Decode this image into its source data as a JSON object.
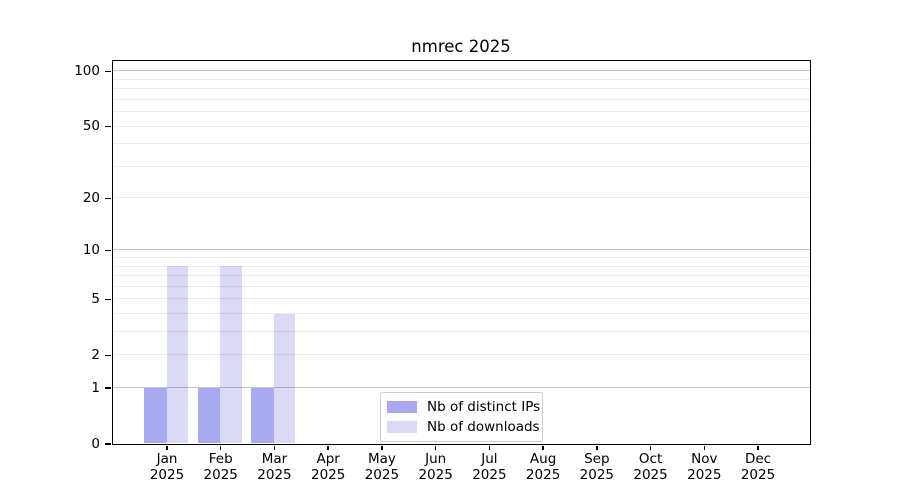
{
  "title": "nmrec 2025",
  "chart_data": {
    "type": "bar",
    "title": "nmrec 2025",
    "categories": [
      "Jan",
      "Feb",
      "Mar",
      "Apr",
      "May",
      "Jun",
      "Jul",
      "Aug",
      "Sep",
      "Oct",
      "Nov",
      "Dec"
    ],
    "category_year": "2025",
    "series": [
      {
        "name": "Nb of distinct IPs",
        "color": "#a9a9f1",
        "values": [
          1,
          1,
          1,
          0,
          0,
          0,
          0,
          0,
          0,
          0,
          0,
          0
        ]
      },
      {
        "name": "Nb of downloads",
        "color": "#dadaf6",
        "values": [
          8,
          8,
          4,
          0,
          0,
          0,
          0,
          0,
          0,
          0,
          0,
          0
        ]
      }
    ],
    "y_axis": {
      "scale": "log1p",
      "ticks": [
        0,
        1,
        2,
        5,
        10,
        20,
        50,
        100
      ],
      "max": 114,
      "major_grid_values": [
        1,
        10,
        100
      ],
      "minor_grid_values": [
        2,
        3,
        4,
        5,
        6,
        7,
        8,
        9,
        20,
        30,
        40,
        50,
        60,
        70,
        80,
        90
      ]
    },
    "xlabel": "",
    "ylabel": "",
    "legend_position": "lower center inside",
    "grid": "horizontal",
    "colors": {
      "major_grid": "#c6c6c6",
      "minor_grid": "#ebebeb",
      "spine": "#000000",
      "background": "#ffffff"
    }
  }
}
